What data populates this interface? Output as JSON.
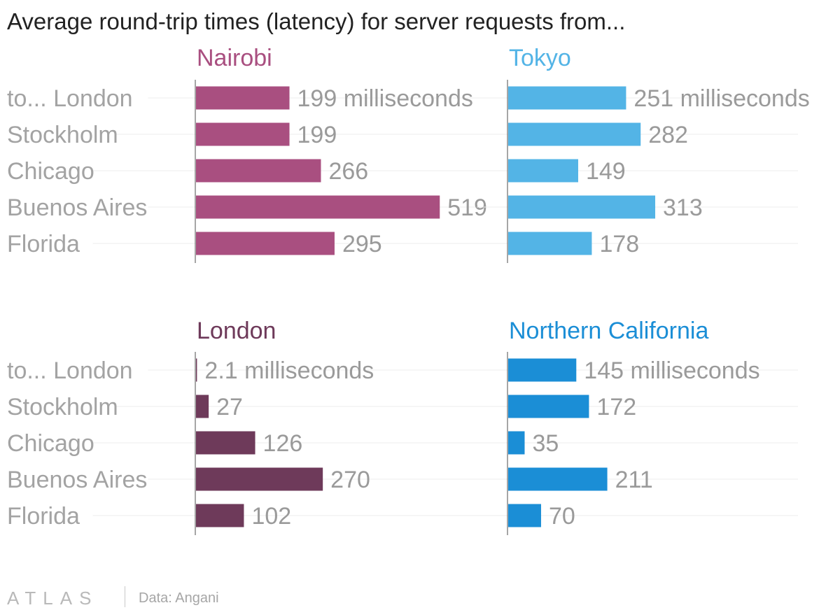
{
  "header": {
    "title": "Average round-trip times (latency) for server requests from..."
  },
  "footer": {
    "brand": "ATLAS",
    "source": "Data: Angani"
  },
  "chart_data": [
    {
      "type": "bar",
      "title": "Nairobi",
      "color": "#a94f80",
      "categories": [
        "to... London",
        "Stockholm",
        "Chicago",
        "Buenos Aires",
        "Florida"
      ],
      "values": [
        199,
        199,
        266,
        519,
        295
      ],
      "value_labels": [
        "199 milliseconds",
        "199",
        "266",
        "519",
        "295"
      ],
      "unit": "milliseconds",
      "xlim": [
        0,
        1000
      ],
      "grid": true
    },
    {
      "type": "bar",
      "title": "Tokyo",
      "color": "#53b4e6",
      "categories": [
        "to... London",
        "Stockholm",
        "Chicago",
        "Buenos Aires",
        "Florida"
      ],
      "values": [
        251,
        282,
        149,
        313,
        178
      ],
      "value_labels": [
        "251 milliseconds",
        "282",
        "149",
        "313",
        "178"
      ],
      "unit": "milliseconds",
      "xlim": [
        0,
        1000
      ],
      "grid": true
    },
    {
      "type": "bar",
      "title": "London",
      "color": "#6e3a5a",
      "categories": [
        "to... London",
        "Stockholm",
        "Chicago",
        "Buenos Aires",
        "Florida"
      ],
      "values": [
        2.1,
        27,
        126,
        270,
        102
      ],
      "value_labels": [
        "2.1 milliseconds",
        "27",
        "126",
        "270",
        "102"
      ],
      "unit": "milliseconds",
      "xlim": [
        0,
        1000
      ],
      "grid": true
    },
    {
      "type": "bar",
      "title": "Northern California",
      "color": "#1b8ed6",
      "categories": [
        "to... London",
        "Stockholm",
        "Chicago",
        "Buenos Aires",
        "Florida"
      ],
      "values": [
        145,
        172,
        35,
        211,
        70
      ],
      "value_labels": [
        "145 milliseconds",
        "172",
        "35",
        "211",
        "70"
      ],
      "unit": "milliseconds",
      "xlim": [
        0,
        1000
      ],
      "grid": true
    }
  ]
}
